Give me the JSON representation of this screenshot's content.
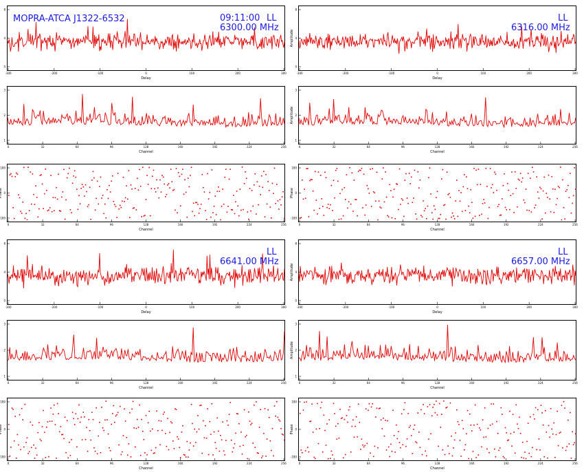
{
  "colors": {
    "trace": "#e00000",
    "annotation": "#1a1ae6"
  },
  "header": {
    "source": "MOPRA-ATCA J1322-6532",
    "time": "09:11:00",
    "pol": "LL",
    "freq_1": "6300.00 MHz",
    "freq_2": "6316.00 MHz",
    "freq_3": "6641.00 MHz",
    "freq_4": "6657.00 MHz"
  },
  "chart_data": [
    {
      "id": "delay-1",
      "type": "line",
      "xlabel": "Delay",
      "ylabel": "",
      "x_tick_labels": [
        "-300",
        "-200",
        "-100",
        "0",
        "100",
        "200",
        "300"
      ],
      "y_tick_labels": [
        "0",
        "4",
        "8"
      ],
      "ylim": [
        0,
        8
      ]
    },
    {
      "id": "delay-2",
      "type": "line",
      "xlabel": "Delay",
      "ylabel": "Amplitude",
      "x_tick_labels": [
        "-300",
        "-200",
        "-100",
        "0",
        "100",
        "200",
        "300"
      ],
      "y_tick_labels": [
        "0",
        "4",
        "8"
      ],
      "ylim": [
        0,
        8
      ]
    },
    {
      "id": "channel-1",
      "type": "line",
      "xlabel": "Channel",
      "ylabel": "",
      "x_tick_labels": [
        "0",
        "32",
        "64",
        "96",
        "128",
        "160",
        "192",
        "224",
        "256"
      ],
      "y_tick_labels": [
        "1",
        "2",
        "3"
      ],
      "ylim": [
        0.8,
        3.3
      ]
    },
    {
      "id": "channel-2",
      "type": "line",
      "xlabel": "Channel",
      "ylabel": "Amplitude",
      "x_tick_labels": [
        "0",
        "32",
        "64",
        "96",
        "128",
        "160",
        "192",
        "224",
        "256"
      ],
      "y_tick_labels": [
        "1",
        "2",
        "3"
      ],
      "ylim": [
        0.8,
        3.3
      ]
    },
    {
      "id": "phase-1",
      "type": "scatter",
      "xlabel": "Channel",
      "ylabel": "Phase",
      "x_tick_labels": [
        "0",
        "32",
        "64",
        "96",
        "128",
        "160",
        "192",
        "224",
        "256"
      ],
      "y_tick_labels": [
        "-180",
        "0",
        "180"
      ],
      "ylim": [
        -180,
        180
      ]
    },
    {
      "id": "phase-2",
      "type": "scatter",
      "xlabel": "Channel",
      "ylabel": "Phase",
      "x_tick_labels": [
        "0",
        "32",
        "64",
        "96",
        "128",
        "160",
        "192",
        "224",
        "256"
      ],
      "y_tick_labels": [
        "-180",
        "0",
        "180"
      ],
      "ylim": [
        -180,
        180
      ]
    },
    {
      "id": "delay-3",
      "type": "line",
      "xlabel": "Delay",
      "ylabel": "",
      "x_tick_labels": [
        "-300",
        "-200",
        "-100",
        "0",
        "100",
        "200",
        "300"
      ],
      "y_tick_labels": [
        "0",
        "4",
        "8"
      ],
      "ylim": [
        0,
        8
      ]
    },
    {
      "id": "delay-4",
      "type": "line",
      "xlabel": "Delay",
      "ylabel": "Amplitude",
      "x_tick_labels": [
        "-300",
        "-200",
        "-100",
        "0",
        "100",
        "200",
        "300"
      ],
      "y_tick_labels": [
        "0",
        "4",
        "8"
      ],
      "ylim": [
        0,
        8
      ]
    },
    {
      "id": "channel-3",
      "type": "line",
      "xlabel": "Channel",
      "ylabel": "",
      "x_tick_labels": [
        "0",
        "32",
        "64",
        "96",
        "128",
        "160",
        "192",
        "224",
        "256"
      ],
      "y_tick_labels": [
        "1",
        "2",
        "3"
      ],
      "ylim": [
        0.8,
        3.3
      ]
    },
    {
      "id": "channel-4",
      "type": "line",
      "xlabel": "Channel",
      "ylabel": "Amplitude",
      "x_tick_labels": [
        "0",
        "32",
        "64",
        "96",
        "128",
        "160",
        "192",
        "224",
        "256"
      ],
      "y_tick_labels": [
        "1",
        "2",
        "3"
      ],
      "ylim": [
        0.8,
        3.3
      ]
    },
    {
      "id": "phase-3",
      "type": "scatter",
      "xlabel": "Channel",
      "ylabel": "Phase",
      "x_tick_labels": [
        "0",
        "32",
        "64",
        "96",
        "128",
        "160",
        "192",
        "224",
        "256"
      ],
      "y_tick_labels": [
        "-180",
        "0",
        "180"
      ],
      "ylim": [
        -180,
        180
      ]
    },
    {
      "id": "phase-4",
      "type": "scatter",
      "xlabel": "Channel",
      "ylabel": "Phase",
      "x_tick_labels": [
        "0",
        "32",
        "64",
        "96",
        "128",
        "160",
        "192",
        "224",
        "256"
      ],
      "y_tick_labels": [
        "-180",
        "0",
        "180"
      ],
      "ylim": [
        -180,
        180
      ]
    }
  ]
}
